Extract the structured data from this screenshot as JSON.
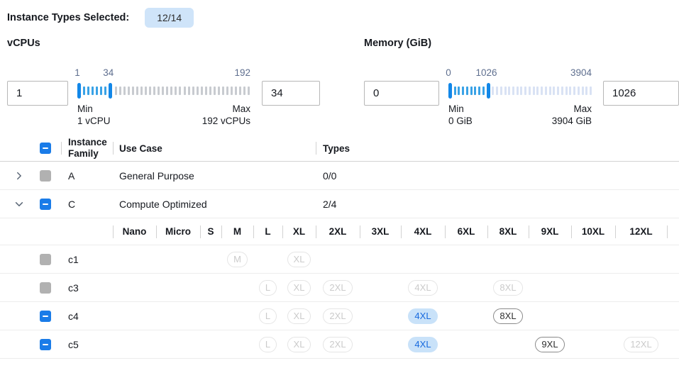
{
  "colors": {
    "accent": "#1a7ce8",
    "badge_bg": "#cfe4f9",
    "selected_badge_bg": "#c9e2f9",
    "selected_badge_text": "#186ade",
    "slider_handle": "#1287e8",
    "slider_active_tick": "#39a2e6"
  },
  "header": {
    "label": "Instance Types Selected:",
    "badge": "12/14"
  },
  "filters": {
    "vcpus": {
      "title": "vCPUs",
      "min_input": "1",
      "max_input": "34",
      "slider": {
        "min": 1,
        "max": 192,
        "low": 1,
        "high": 34,
        "ticks": 40,
        "low_label": "1",
        "high_label": "34",
        "max_label": "192"
      },
      "min_caption": "Min",
      "min_value": "1 vCPU",
      "max_caption": "Max",
      "max_value": "192 vCPUs"
    },
    "memory": {
      "title": "Memory (GiB)",
      "min_input": "0",
      "max_input": "1026",
      "slider": {
        "min": 0,
        "max": 3904,
        "low": 0,
        "high": 1026,
        "ticks": 35,
        "low_label": "0",
        "high_label": "1026",
        "max_label": "3904"
      },
      "min_caption": "Min",
      "min_value": "0 GiB",
      "max_caption": "Max",
      "max_value": "3904 GiB"
    }
  },
  "table": {
    "select_all_state": "indeterminate",
    "columns": {
      "family": "Instance Family",
      "use_case": "Use Case",
      "types": "Types"
    },
    "size_columns": [
      "Nano",
      "Micro",
      "S",
      "M",
      "L",
      "XL",
      "2XL",
      "3XL",
      "4XL",
      "6XL",
      "8XL",
      "9XL",
      "10XL",
      "12XL"
    ],
    "rows": [
      {
        "type": "family",
        "expanded": false,
        "checkbox": "disabled",
        "name": "A",
        "use_case": "General Purpose",
        "types": "0/0"
      },
      {
        "type": "family",
        "expanded": true,
        "checkbox": "indeterminate",
        "name": "C",
        "use_case": "Compute Optimized",
        "types": "2/4"
      },
      {
        "type": "sizes"
      },
      {
        "type": "instance",
        "checkbox": "disabled",
        "name": "c1",
        "badges": [
          {
            "size": "M",
            "state": "disabled"
          },
          {
            "size": "XL",
            "state": "disabled"
          }
        ]
      },
      {
        "type": "instance",
        "checkbox": "disabled",
        "name": "c3",
        "badges": [
          {
            "size": "L",
            "state": "disabled"
          },
          {
            "size": "XL",
            "state": "disabled"
          },
          {
            "size": "2XL",
            "state": "disabled"
          },
          {
            "size": "4XL",
            "state": "disabled"
          },
          {
            "size": "8XL",
            "state": "disabled"
          }
        ]
      },
      {
        "type": "instance",
        "checkbox": "indeterminate",
        "name": "c4",
        "badges": [
          {
            "size": "L",
            "state": "disabled"
          },
          {
            "size": "XL",
            "state": "disabled"
          },
          {
            "size": "2XL",
            "state": "disabled"
          },
          {
            "size": "4XL",
            "state": "selected"
          },
          {
            "size": "8XL",
            "state": "enabled"
          }
        ]
      },
      {
        "type": "instance",
        "checkbox": "indeterminate",
        "name": "c5",
        "badges": [
          {
            "size": "L",
            "state": "disabled"
          },
          {
            "size": "XL",
            "state": "disabled"
          },
          {
            "size": "2XL",
            "state": "disabled"
          },
          {
            "size": "4XL",
            "state": "selected"
          },
          {
            "size": "9XL",
            "state": "enabled"
          },
          {
            "size": "12XL",
            "state": "disabled"
          }
        ]
      }
    ]
  }
}
